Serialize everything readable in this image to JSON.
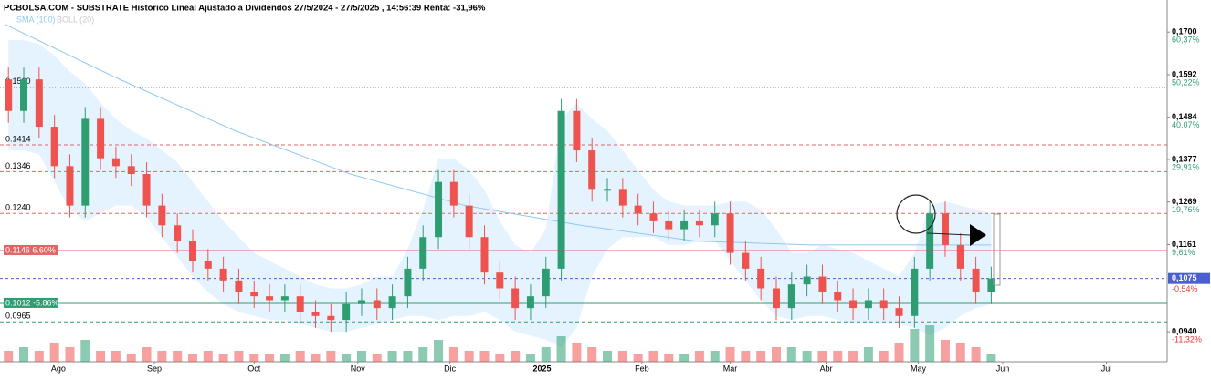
{
  "chart_data": {
    "type": "candlestick",
    "title": "PCBOLSA.COM - SUBSTRATE Histórico Lineal Ajustado a Dividendos 27/5/2024 - 27/5/2025 , 14:56:39 Renta: -31,96%",
    "indicators": [
      {
        "name": "SMA (100)",
        "color": "#8fc9ef"
      },
      {
        "name": "BOLL (20)",
        "color": "#c8c8c8"
      }
    ],
    "ylim": [
      0.0864,
      0.1749
    ],
    "xlim": [
      0,
      304
    ],
    "yticks": [
      {
        "value": 0.17,
        "label": "0,1700"
      },
      {
        "value": 0.1592,
        "label": "0,1592"
      },
      {
        "value": 0.1484,
        "label": "0,1484"
      },
      {
        "value": 0.1377,
        "label": "0,1377"
      },
      {
        "value": 0.1269,
        "label": "0,1269"
      },
      {
        "value": 0.1161,
        "label": "0,1161"
      },
      {
        "value": 0.094,
        "label": "0,0940"
      }
    ],
    "percent_labels": [
      {
        "value": 0.17,
        "label": "60,37%"
      },
      {
        "value": 0.1592,
        "label": "50,22%"
      },
      {
        "value": 0.1484,
        "label": "40,07%"
      },
      {
        "value": 0.1377,
        "label": "29,91%"
      },
      {
        "value": 0.1269,
        "label": "19,76%"
      },
      {
        "value": 0.1161,
        "label": "9,61%"
      },
      {
        "value": 0.1075,
        "label": "-0,54%"
      },
      {
        "value": 0.094,
        "label": "-11,32%"
      }
    ],
    "last_price": {
      "value": 0.1075,
      "label": "0,1075"
    },
    "xticks": [
      {
        "value": 14,
        "label": "Ago"
      },
      {
        "value": 39,
        "label": "Sep"
      },
      {
        "value": 65,
        "label": "Oct"
      },
      {
        "value": 92,
        "label": "Nov"
      },
      {
        "value": 116,
        "label": "Dic"
      },
      {
        "value": 140,
        "label": "2025"
      },
      {
        "value": 166,
        "label": "Feb"
      },
      {
        "value": 189,
        "label": "Mar"
      },
      {
        "value": 214,
        "label": "Abr"
      },
      {
        "value": 238,
        "label": "May"
      },
      {
        "value": 260,
        "label": "Jun"
      },
      {
        "value": 287,
        "label": "Jul"
      }
    ],
    "levels": [
      {
        "value": 0.156,
        "label": "0.1560",
        "color": "#000000",
        "style": "dotted",
        "box": false
      },
      {
        "value": 0.1414,
        "label": "0.1414",
        "color": "#e06666",
        "style": "dashed",
        "box": false
      },
      {
        "value": 0.1346,
        "label": "0.1346",
        "color": "#e06666",
        "style": "dashed",
        "box": false
      },
      {
        "value": 0.124,
        "label": "0.1240",
        "color": "#e06666",
        "style": "dashed",
        "box": false
      },
      {
        "value": 0.1146,
        "label": "0.1146  6.60%",
        "color": "#e06666",
        "style": "solid",
        "box": true
      },
      {
        "value": 0.1012,
        "label": "0.1012  -5.86%",
        "color": "#2e9e72",
        "style": "solid",
        "box": true
      },
      {
        "value": 0.0965,
        "label": "0.0965",
        "color": "#2e9e72",
        "style": "dashed",
        "box": false
      }
    ],
    "candles": {
      "x": [
        1,
        5,
        9,
        13,
        17,
        21,
        25,
        29,
        33,
        37,
        41,
        45,
        49,
        53,
        57,
        61,
        65,
        69,
        73,
        77,
        81,
        85,
        89,
        93,
        97,
        101,
        105,
        109,
        113,
        117,
        121,
        125,
        129,
        133,
        137,
        141,
        145,
        149,
        153,
        157,
        161,
        165,
        169,
        173,
        177,
        181,
        185,
        189,
        193,
        197,
        201,
        205,
        209,
        213,
        217,
        221,
        225,
        229,
        233,
        237,
        241,
        245,
        249,
        253,
        257
      ],
      "open": [
        0.158,
        0.15,
        0.158,
        0.146,
        0.136,
        0.126,
        0.148,
        0.138,
        0.136,
        0.134,
        0.126,
        0.121,
        0.117,
        0.112,
        0.11,
        0.107,
        0.104,
        0.103,
        0.102,
        0.103,
        0.099,
        0.098,
        0.097,
        0.101,
        0.102,
        0.1,
        0.103,
        0.11,
        0.118,
        0.132,
        0.126,
        0.118,
        0.109,
        0.105,
        0.1,
        0.103,
        0.11,
        0.15,
        0.14,
        0.13,
        0.13,
        0.126,
        0.124,
        0.122,
        0.12,
        0.122,
        0.121,
        0.124,
        0.114,
        0.11,
        0.105,
        0.1,
        0.106,
        0.108,
        0.104,
        0.102,
        0.1,
        0.102,
        0.1,
        0.098,
        0.11,
        0.124,
        0.116,
        0.11,
        0.104
      ],
      "high": [
        0.161,
        0.161,
        0.161,
        0.149,
        0.139,
        0.151,
        0.151,
        0.141,
        0.139,
        0.137,
        0.129,
        0.124,
        0.12,
        0.115,
        0.113,
        0.11,
        0.107,
        0.106,
        0.106,
        0.106,
        0.102,
        0.101,
        0.104,
        0.105,
        0.105,
        0.106,
        0.113,
        0.121,
        0.135,
        0.135,
        0.129,
        0.121,
        0.112,
        0.108,
        0.106,
        0.113,
        0.153,
        0.153,
        0.143,
        0.133,
        0.133,
        0.129,
        0.127,
        0.125,
        0.125,
        0.125,
        0.127,
        0.127,
        0.117,
        0.113,
        0.108,
        0.109,
        0.111,
        0.111,
        0.107,
        0.105,
        0.105,
        0.105,
        0.103,
        0.113,
        0.127,
        0.127,
        0.119,
        0.113,
        0.1105
      ],
      "low": [
        0.147,
        0.147,
        0.143,
        0.133,
        0.123,
        0.123,
        0.135,
        0.133,
        0.131,
        0.123,
        0.118,
        0.114,
        0.109,
        0.107,
        0.104,
        0.101,
        0.1,
        0.099,
        0.099,
        0.096,
        0.095,
        0.094,
        0.094,
        0.098,
        0.097,
        0.097,
        0.1,
        0.107,
        0.115,
        0.123,
        0.115,
        0.106,
        0.102,
        0.097,
        0.097,
        0.1,
        0.107,
        0.137,
        0.127,
        0.127,
        0.123,
        0.121,
        0.119,
        0.117,
        0.117,
        0.118,
        0.118,
        0.111,
        0.107,
        0.102,
        0.097,
        0.097,
        0.103,
        0.101,
        0.099,
        0.097,
        0.097,
        0.097,
        0.095,
        0.095,
        0.107,
        0.113,
        0.107,
        0.101,
        0.101
      ],
      "close": [
        0.15,
        0.158,
        0.146,
        0.136,
        0.126,
        0.148,
        0.138,
        0.136,
        0.134,
        0.126,
        0.121,
        0.117,
        0.112,
        0.11,
        0.107,
        0.104,
        0.103,
        0.102,
        0.103,
        0.099,
        0.098,
        0.097,
        0.101,
        0.102,
        0.1,
        0.103,
        0.11,
        0.118,
        0.132,
        0.126,
        0.118,
        0.109,
        0.105,
        0.1,
        0.103,
        0.11,
        0.15,
        0.14,
        0.13,
        0.13,
        0.126,
        0.124,
        0.122,
        0.12,
        0.122,
        0.121,
        0.124,
        0.114,
        0.11,
        0.105,
        0.1,
        0.106,
        0.108,
        0.104,
        0.102,
        0.1,
        0.102,
        0.1,
        0.098,
        0.11,
        0.124,
        0.116,
        0.11,
        0.104,
        0.1075
      ],
      "volume": [
        3,
        4,
        3,
        5,
        4,
        6,
        3,
        3,
        2,
        4,
        3,
        3,
        2,
        3,
        2,
        3,
        2,
        2,
        2,
        3,
        2,
        3,
        2,
        3,
        2,
        3,
        3,
        4,
        6,
        4,
        3,
        3,
        2,
        3,
        2,
        4,
        7,
        5,
        4,
        3,
        3,
        2,
        3,
        2,
        2,
        3,
        3,
        4,
        3,
        3,
        4,
        4,
        3,
        3,
        3,
        3,
        4,
        3,
        5,
        9,
        10,
        6,
        5,
        4,
        2
      ],
      "up_color": "#2e9e72",
      "down_color": "#ef5350"
    },
    "volume_lim": [
      0,
      10
    ],
    "sma": {
      "x": [
        0,
        30,
        60,
        90,
        120,
        150,
        180,
        210,
        240,
        257
      ],
      "values": [
        0.172,
        0.158,
        0.145,
        0.134,
        0.126,
        0.121,
        0.117,
        0.116,
        0.116,
        0.116
      ]
    },
    "bollinger": {
      "upper": [
        0.168,
        0.168,
        0.167,
        0.164,
        0.16,
        0.157,
        0.152,
        0.148,
        0.145,
        0.143,
        0.14,
        0.137,
        0.132,
        0.127,
        0.122,
        0.118,
        0.114,
        0.112,
        0.11,
        0.108,
        0.106,
        0.105,
        0.105,
        0.106,
        0.108,
        0.108,
        0.115,
        0.125,
        0.138,
        0.138,
        0.135,
        0.13,
        0.122,
        0.116,
        0.114,
        0.12,
        0.148,
        0.152,
        0.148,
        0.145,
        0.14,
        0.135,
        0.13,
        0.127,
        0.126,
        0.126,
        0.126,
        0.127,
        0.127,
        0.125,
        0.12,
        0.114,
        0.114,
        0.116,
        0.115,
        0.114,
        0.112,
        0.11,
        0.108,
        0.114,
        0.126,
        0.127,
        0.126,
        0.125,
        0.124
      ],
      "lower": [
        0.14,
        0.14,
        0.139,
        0.132,
        0.125,
        0.122,
        0.124,
        0.126,
        0.126,
        0.123,
        0.118,
        0.113,
        0.108,
        0.104,
        0.101,
        0.099,
        0.098,
        0.097,
        0.097,
        0.096,
        0.095,
        0.094,
        0.094,
        0.095,
        0.096,
        0.097,
        0.098,
        0.098,
        0.097,
        0.098,
        0.098,
        0.099,
        0.097,
        0.094,
        0.093,
        0.092,
        0.09,
        0.095,
        0.108,
        0.115,
        0.118,
        0.118,
        0.118,
        0.116,
        0.116,
        0.117,
        0.117,
        0.112,
        0.107,
        0.102,
        0.098,
        0.097,
        0.098,
        0.098,
        0.097,
        0.096,
        0.096,
        0.096,
        0.096,
        0.095,
        0.093,
        0.095,
        0.098,
        0.1,
        0.101
      ]
    }
  }
}
